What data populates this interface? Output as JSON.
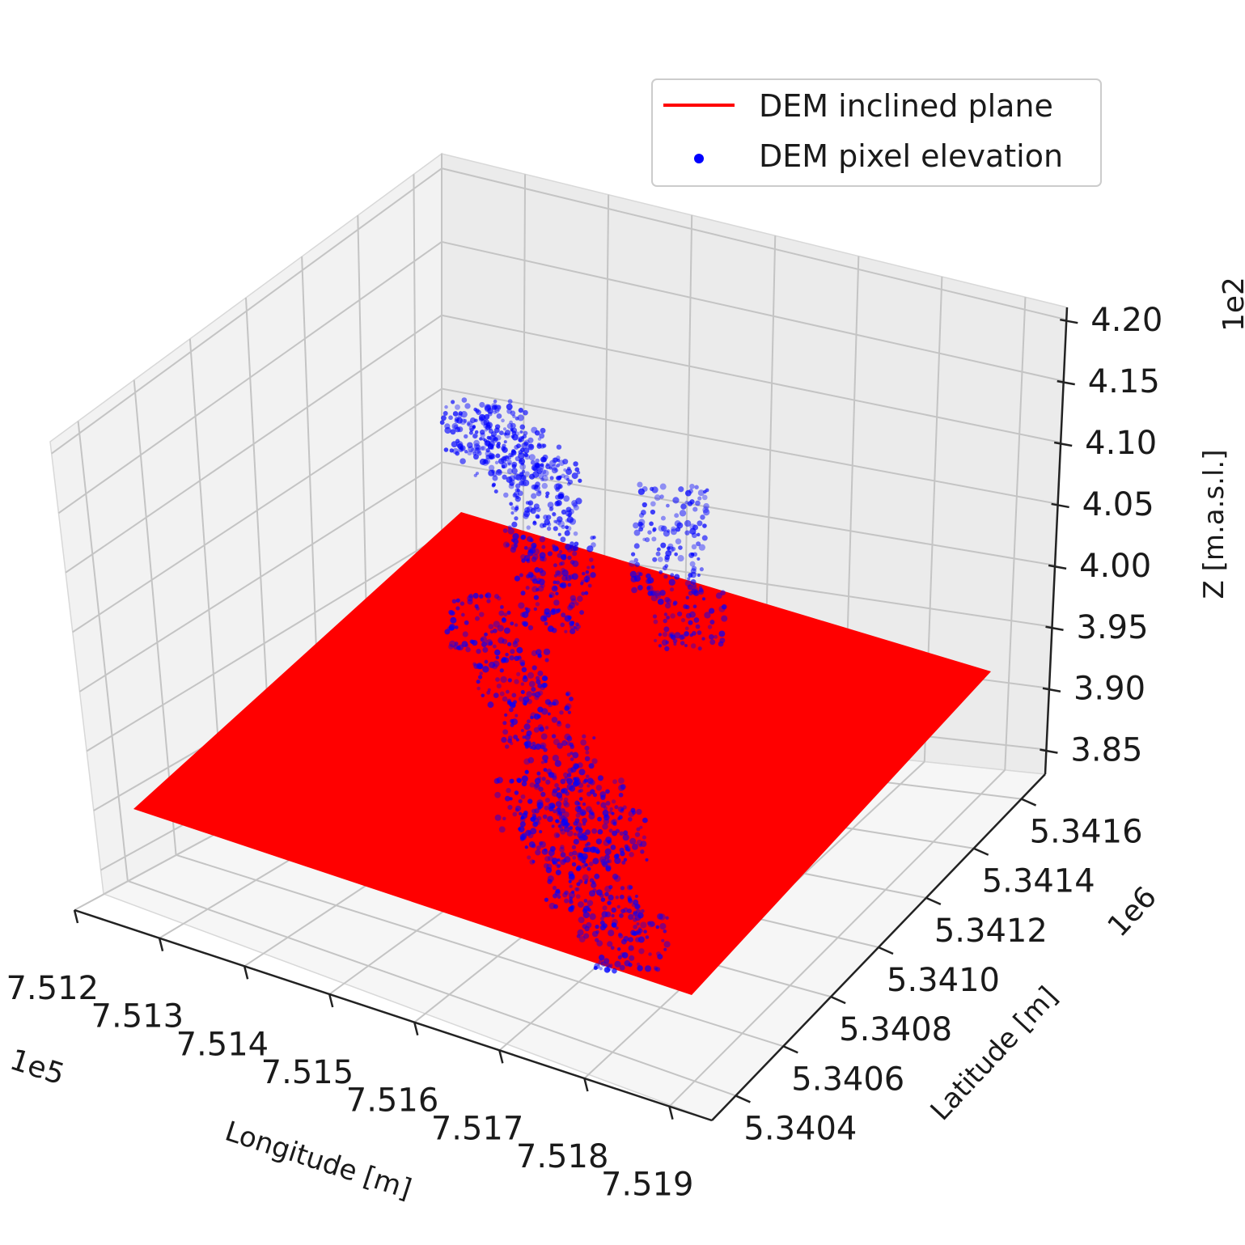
{
  "chart_data": {
    "type": "scatter",
    "subtype": "3d scatter with inclined plane surface",
    "title": "",
    "xlabel": "Longitude [m]",
    "ylabel": "Latitude [m]",
    "zlabel": "Z [m.a.s.l.]",
    "x_offset": "1e5",
    "y_offset": "1e6",
    "z_offset": "1e2",
    "x_ticks": [
      "7.512",
      "7.513",
      "7.514",
      "7.515",
      "7.516",
      "7.517",
      "7.518",
      "7.519"
    ],
    "y_ticks": [
      "5.3404",
      "5.3406",
      "5.3408",
      "5.3410",
      "5.3412",
      "5.3414",
      "5.3416"
    ],
    "z_ticks": [
      "3.85",
      "3.90",
      "3.95",
      "4.00",
      "4.05",
      "4.10",
      "4.15",
      "4.20"
    ],
    "x_range": [
      7.512,
      7.5195
    ],
    "y_range": [
      5.3403,
      5.3417
    ],
    "z_range": [
      3.83,
      4.21
    ],
    "grid": true,
    "legend_position": "top-right",
    "legend": [
      {
        "label": "DEM inclined plane",
        "marker": "line",
        "color": "#ff0000"
      },
      {
        "label": "DEM pixel elevation",
        "marker": "dot",
        "color": "#0000ff"
      }
    ],
    "series": [
      {
        "name": "DEM inclined plane",
        "kind": "surface",
        "color": "#ff0000",
        "corners": [
          {
            "x": 7.512,
            "y": 5.3417,
            "z": 3.98
          },
          {
            "x": 7.5195,
            "y": 5.3417,
            "z": 3.97
          },
          {
            "x": 7.5195,
            "y": 5.3403,
            "z": 3.95
          },
          {
            "x": 7.512,
            "y": 5.3403,
            "z": 3.96
          }
        ]
      },
      {
        "name": "DEM pixel elevation",
        "kind": "scatter",
        "color": "#0000ff",
        "point_groups": [
          {
            "x": [
              7.5132,
              7.5134,
              7.5136,
              7.5138
            ],
            "y": [
              5.3416,
              5.3416,
              5.3416,
              5.3416
            ],
            "z": [
              4.11,
              4.11,
              4.1,
              4.09
            ]
          },
          {
            "x": [
              7.514,
              7.5142,
              7.5144,
              7.5146
            ],
            "y": [
              5.3416,
              5.3415,
              5.3415,
              5.3414
            ],
            "z": [
              4.08,
              4.06,
              4.04,
              4.02
            ]
          },
          {
            "x": [
              7.5156,
              7.5158,
              7.516
            ],
            "y": [
              5.3416,
              5.3415,
              5.3415
            ],
            "z": [
              4.1,
              4.07,
              4.03
            ]
          },
          {
            "x": [
              7.514,
              7.5146,
              7.5152,
              7.5158,
              7.5164,
              7.517
            ],
            "y": [
              5.3413,
              5.3412,
              5.3411,
              5.341,
              5.3409,
              5.3408
            ],
            "z": [
              4.0,
              3.98,
              3.97,
              3.96,
              3.95,
              3.95
            ]
          },
          {
            "x": [
              7.516,
              7.5166,
              7.5172,
              7.5178,
              7.5184
            ],
            "y": [
              5.3408,
              5.3407,
              5.3406,
              5.3405,
              5.3404
            ],
            "z": [
              3.95,
              3.95,
              3.94,
              3.94,
              3.94
            ]
          }
        ]
      }
    ]
  }
}
